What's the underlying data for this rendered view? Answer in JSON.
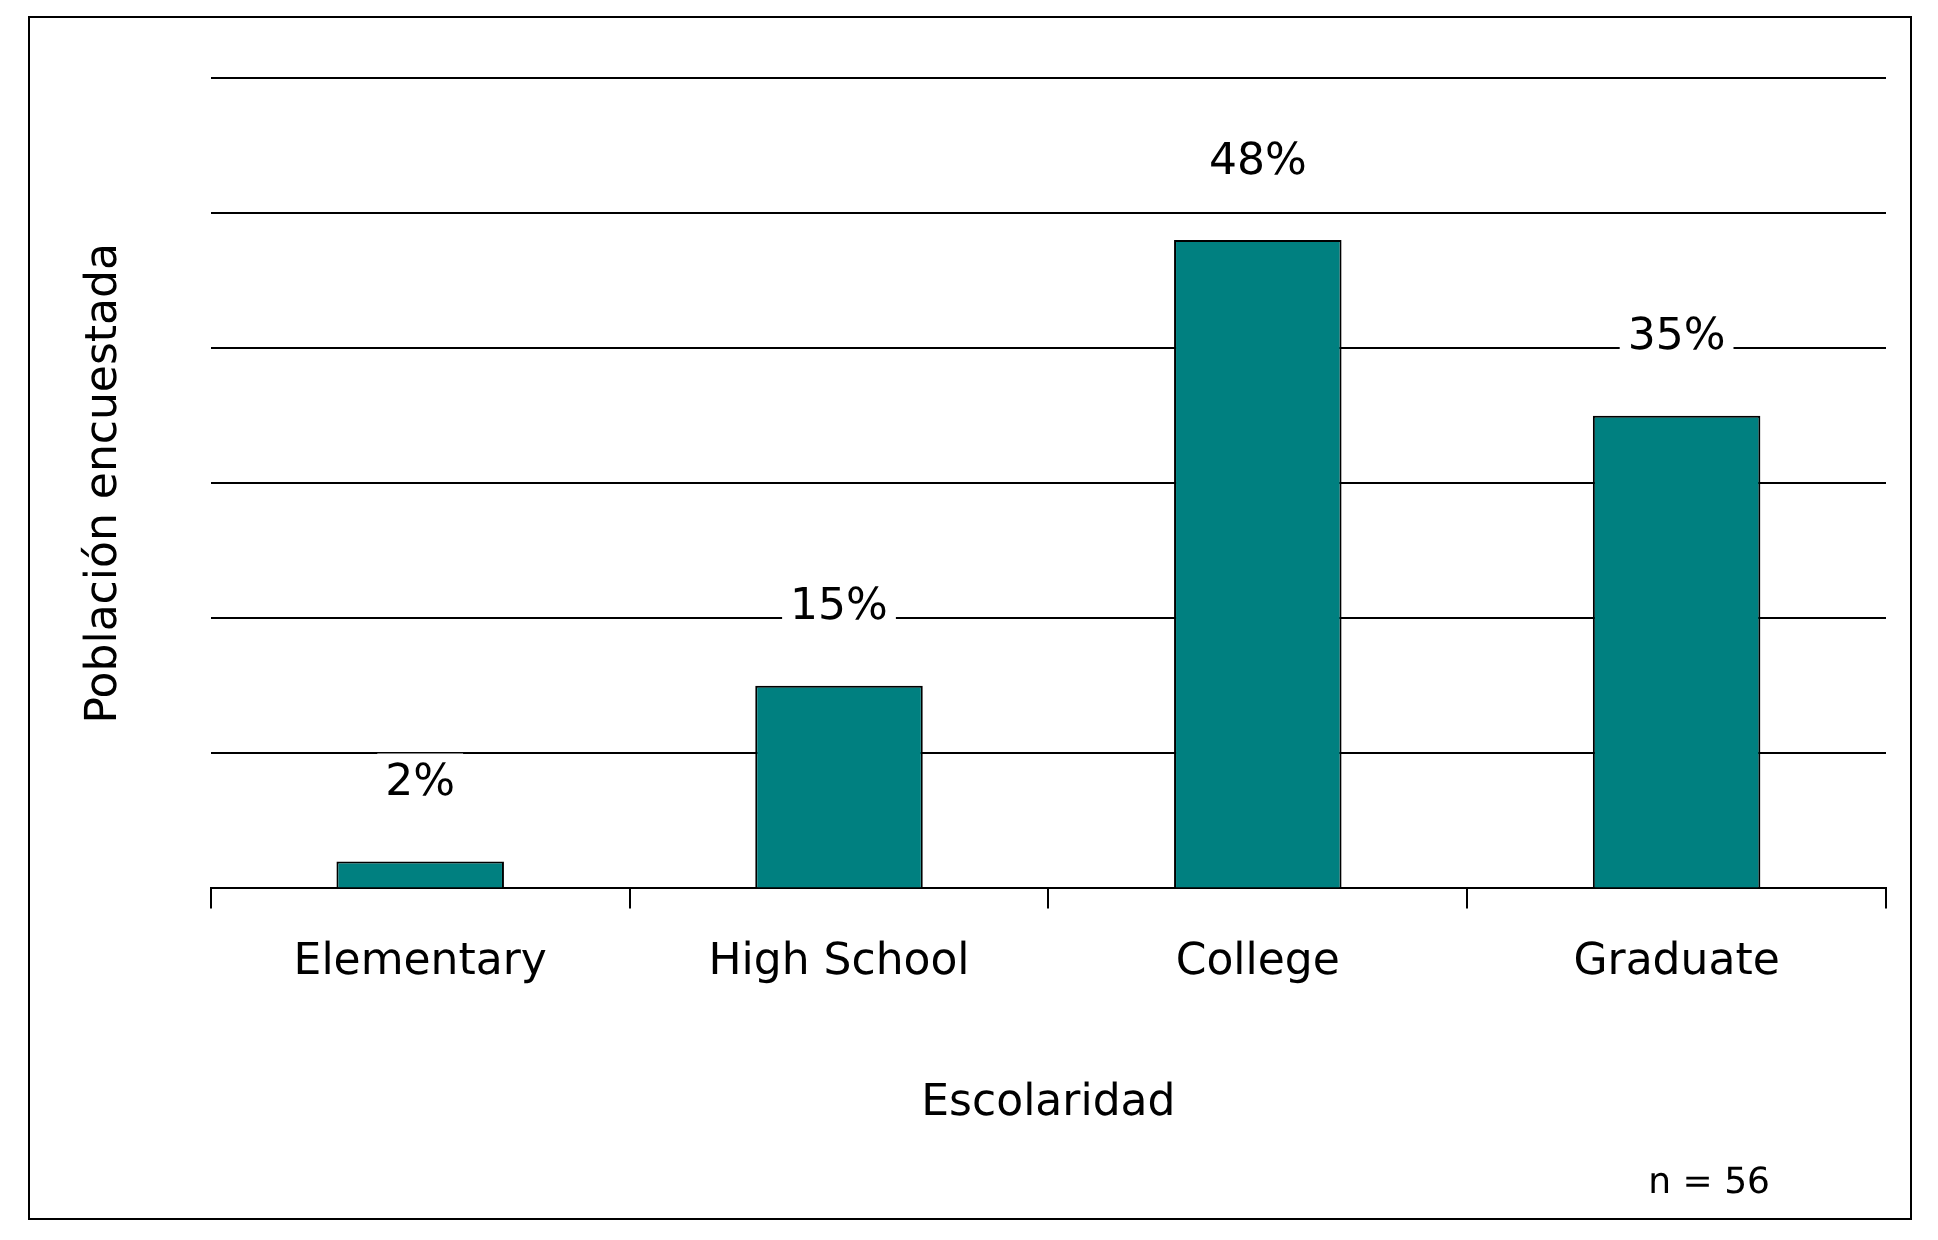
{
  "chart_data": {
    "type": "bar",
    "xlabel": "Escolaridad",
    "ylabel": "Población encuestada",
    "categories": [
      "Elementary",
      "High School",
      "College",
      "Graduate"
    ],
    "values": [
      2,
      15,
      48,
      35
    ],
    "color": "#008080",
    "value_labels": [
      "2%",
      "15%",
      "48%",
      "35%"
    ],
    "ylim": [
      0,
      60
    ],
    "yticks": [
      {
        "value": 0,
        "label": null
      },
      {
        "value": 10,
        "label": null
      },
      {
        "value": 20,
        "label": null
      },
      {
        "value": 30,
        "label": null
      },
      {
        "value": 40,
        "label": null
      },
      {
        "value": 50,
        "label": null
      },
      {
        "value": 60,
        "label": null
      }
    ],
    "grid": "y",
    "tick_labels": "x",
    "legend": false,
    "annotations": [
      "n = 56"
    ]
  }
}
